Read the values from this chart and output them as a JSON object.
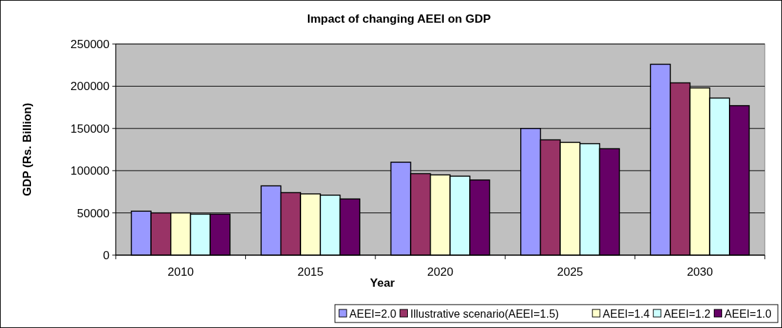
{
  "chart_data": {
    "type": "bar",
    "title": "Impact of changing AEEI on GDP",
    "xlabel": "Year",
    "ylabel": "GDP (Rs. Billion)",
    "categories": [
      "2010",
      "2015",
      "2020",
      "2025",
      "2030"
    ],
    "series": [
      {
        "name": "AEEI=2.0",
        "color": "#9999ff",
        "values": [
          52000,
          82000,
          110000,
          150000,
          226000
        ]
      },
      {
        "name": "Illustrative scenario(AEEI=1.5)",
        "color": "#993366",
        "values": [
          50000,
          74000,
          96500,
          136500,
          204000
        ]
      },
      {
        "name": "AEEI=1.4",
        "color": "#ffffcc",
        "values": [
          50000,
          72500,
          95000,
          133500,
          198000
        ]
      },
      {
        "name": "AEEI=1.2",
        "color": "#ccffff",
        "values": [
          48500,
          71000,
          93500,
          132000,
          186000
        ]
      },
      {
        "name": "AEEI=1.0",
        "color": "#660066",
        "values": [
          48500,
          66500,
          89000,
          126000,
          177000
        ]
      }
    ],
    "ylim": [
      0,
      250000
    ],
    "yticks": [
      0,
      50000,
      100000,
      150000,
      200000,
      250000
    ],
    "grid": "y",
    "legend": "bottom right"
  }
}
